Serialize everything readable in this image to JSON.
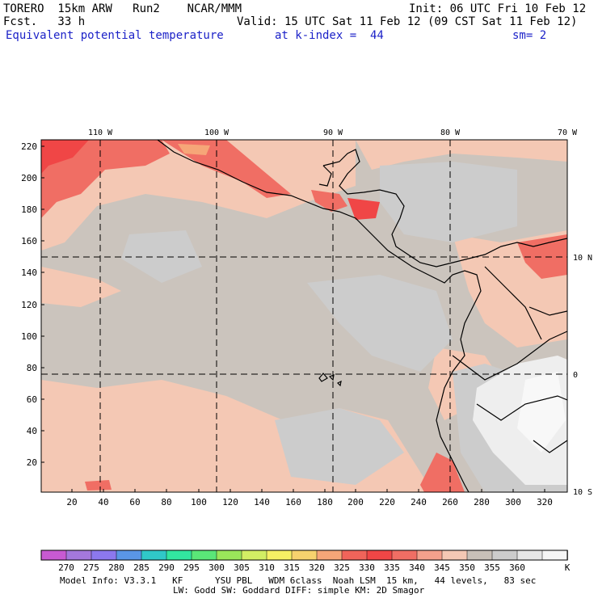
{
  "header": {
    "model": "TORERO  15km ARW   Run2    NCAR/MMM",
    "init": "Init: 06 UTC Fri 10 Feb 12",
    "fcst": "Fcst.   33 h",
    "valid": "Valid: 15 UTC Sat 11 Feb 12 (09 CST Sat 11 Feb 12)",
    "field": "Equivalent potential temperature",
    "level": "at k-index =  44",
    "smooth": "sm= 2"
  },
  "map": {
    "top_lon_labels": [
      "110 W",
      "100 W",
      "90 W",
      "80 W",
      "70 W"
    ],
    "right_lat_labels": [
      "10 N",
      "0",
      "10 S"
    ],
    "left_ticks": [
      "220",
      "200",
      "180",
      "160",
      "140",
      "120",
      "100",
      "80",
      "60",
      "40",
      "20"
    ],
    "bottom_ticks": [
      "20",
      "40",
      "60",
      "80",
      "100",
      "120",
      "140",
      "160",
      "180",
      "200",
      "220",
      "240",
      "260",
      "280",
      "300",
      "320"
    ]
  },
  "colorbar": {
    "labels": [
      "270",
      "275",
      "280",
      "285",
      "290",
      "295",
      "300",
      "305",
      "310",
      "315",
      "320",
      "325",
      "330",
      "335",
      "340",
      "345",
      "350",
      "355",
      "360"
    ],
    "unit": "K",
    "colors": [
      "#c85ad2",
      "#a478dc",
      "#8c78ee",
      "#5a96e6",
      "#30c8c8",
      "#32e6a0",
      "#5ae678",
      "#9ae65a",
      "#d2ee64",
      "#f6f064",
      "#f6d26e",
      "#f6a678",
      "#f0645a",
      "#f04646",
      "#f06e64",
      "#f4a08c",
      "#f4c8b4",
      "#c8c0b8",
      "#cccccc",
      "#e6e6e6",
      "#f6f6f6"
    ]
  },
  "footer": {
    "line1": "Model Info: V3.3.1   KF      YSU PBL   WDM 6class  Noah LSM  15 km,   44 levels,   83 sec",
    "line2": "LW: Godd SW: Goddard DIFF: simple KM: 2D Smagor"
  }
}
